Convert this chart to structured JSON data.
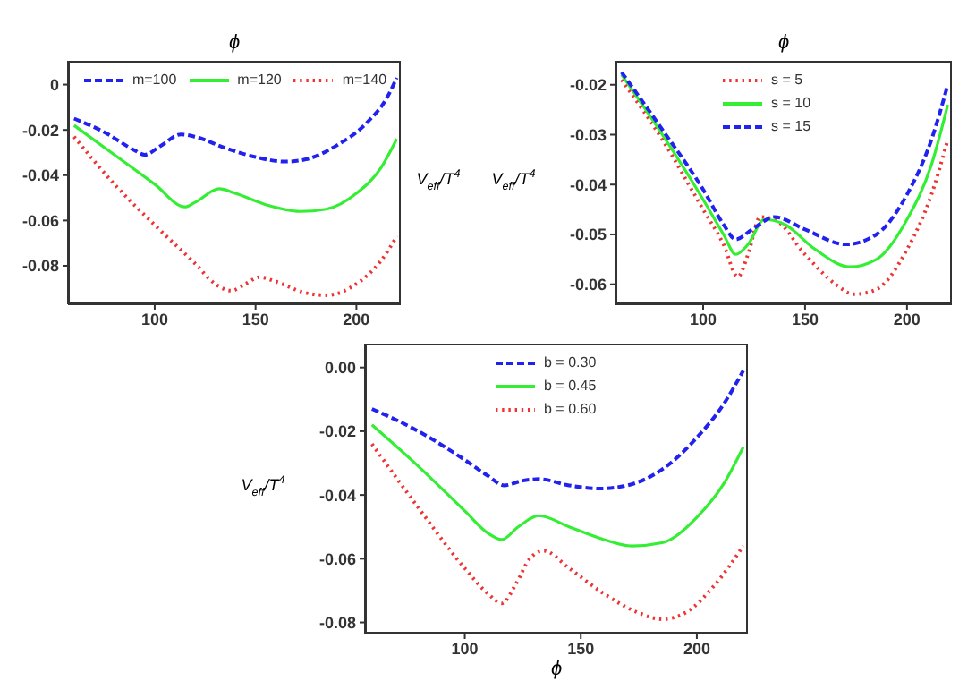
{
  "chart_data": [
    {
      "type": "line",
      "xlabel": "ϕ",
      "ylabel": "V$_{eff}$/T$^{4}$",
      "xlim": [
        57,
        222
      ],
      "ylim": [
        -0.097,
        0.0105
      ],
      "xticks": [
        100,
        150,
        200
      ],
      "yticks": [
        0,
        -0.02,
        -0.04,
        -0.06,
        -0.08
      ],
      "grid": false,
      "legend": "top",
      "marker": "none",
      "series": [
        {
          "name": "m=100",
          "color": "#2222ee",
          "line_style": "dashed",
          "x": [
            60,
            75,
            90,
            95,
            103,
            113,
            120,
            135,
            150,
            165,
            175,
            190,
            205,
            215,
            220
          ],
          "values": [
            -0.015,
            -0.021,
            -0.029,
            -0.031,
            -0.027,
            -0.022,
            -0.023,
            -0.028,
            -0.032,
            -0.034,
            -0.033,
            -0.027,
            -0.017,
            -0.006,
            0.003
          ]
        },
        {
          "name": "m=120",
          "color": "#33ee33",
          "line_style": "solid",
          "x": [
            60,
            80,
            100,
            115,
            120,
            132,
            140,
            155,
            172,
            185,
            200,
            212,
            220
          ],
          "values": [
            -0.018,
            -0.031,
            -0.044,
            -0.054,
            -0.052,
            -0.046,
            -0.048,
            -0.053,
            -0.056,
            -0.055,
            -0.048,
            -0.037,
            -0.024
          ]
        },
        {
          "name": "m=140",
          "color": "#ee3333",
          "line_style": "dotted",
          "x": [
            60,
            80,
            100,
            120,
            130,
            138,
            145,
            152,
            160,
            175,
            185,
            200,
            212,
            220
          ],
          "values": [
            -0.023,
            -0.044,
            -0.062,
            -0.079,
            -0.088,
            -0.091,
            -0.088,
            -0.085,
            -0.087,
            -0.092,
            -0.093,
            -0.088,
            -0.078,
            -0.067
          ]
        }
      ]
    },
    {
      "type": "line",
      "xlabel": "ϕ",
      "ylabel": "V$_{eff}$/T$^{4}$",
      "xlim": [
        57,
        222
      ],
      "ylim": [
        -0.064,
        -0.0152
      ],
      "xticks": [
        100,
        150,
        200
      ],
      "yticks": [
        -0.02,
        -0.03,
        -0.04,
        -0.05,
        -0.06
      ],
      "grid": false,
      "legend": "top",
      "marker": "none",
      "series": [
        {
          "name": "s = 5",
          "color": "#ee3333",
          "line_style": "dotted",
          "x": [
            60,
            80,
            100,
            110,
            117,
            122,
            128,
            135,
            150,
            165,
            174,
            185,
            200,
            212,
            220
          ],
          "values": [
            -0.019,
            -0.031,
            -0.045,
            -0.052,
            -0.0585,
            -0.054,
            -0.0465,
            -0.047,
            -0.054,
            -0.06,
            -0.062,
            -0.061,
            -0.053,
            -0.042,
            -0.031
          ]
        },
        {
          "name": "s = 10",
          "color": "#33ee33",
          "line_style": "solid",
          "x": [
            60,
            80,
            100,
            110,
            116,
            122,
            130,
            140,
            155,
            172,
            185,
            200,
            212,
            220
          ],
          "values": [
            -0.018,
            -0.03,
            -0.043,
            -0.05,
            -0.054,
            -0.052,
            -0.047,
            -0.048,
            -0.053,
            -0.0565,
            -0.055,
            -0.047,
            -0.036,
            -0.024
          ]
        },
        {
          "name": "s = 15",
          "color": "#2222ee",
          "line_style": "dashed",
          "x": [
            60,
            80,
            100,
            110,
            116,
            124,
            135,
            150,
            170,
            185,
            200,
            212,
            220
          ],
          "values": [
            -0.0175,
            -0.029,
            -0.041,
            -0.048,
            -0.051,
            -0.049,
            -0.0465,
            -0.049,
            -0.052,
            -0.05,
            -0.042,
            -0.031,
            -0.02
          ]
        }
      ]
    },
    {
      "type": "line",
      "xlabel": "ϕ",
      "ylabel": "V$_{eff}$/T$^{4}$",
      "xlim": [
        57,
        222
      ],
      "ylim": [
        -0.0835,
        0.0075
      ],
      "xticks": [
        100,
        150,
        200
      ],
      "yticks": [
        {
          "value": 0,
          "label": "0.00"
        },
        -0.02,
        -0.04,
        -0.06,
        -0.08
      ],
      "grid": false,
      "legend": "top",
      "marker": "none",
      "series": [
        {
          "name": "b = 0.30",
          "color": "#2222ee",
          "line_style": "dashed",
          "x": [
            60,
            80,
            100,
            110,
            117,
            125,
            132,
            145,
            158,
            170,
            185,
            200,
            212,
            220
          ],
          "values": [
            -0.013,
            -0.02,
            -0.029,
            -0.034,
            -0.037,
            -0.0355,
            -0.035,
            -0.037,
            -0.038,
            -0.037,
            -0.032,
            -0.022,
            -0.011,
            -0.001
          ]
        },
        {
          "name": "b = 0.45",
          "color": "#33ee33",
          "line_style": "solid",
          "x": [
            60,
            80,
            100,
            110,
            116,
            123,
            132,
            145,
            160,
            172,
            185,
            200,
            212,
            220
          ],
          "values": [
            -0.018,
            -0.031,
            -0.045,
            -0.052,
            -0.054,
            -0.05,
            -0.0465,
            -0.05,
            -0.054,
            -0.056,
            -0.055,
            -0.047,
            -0.036,
            -0.025
          ]
        },
        {
          "name": "b = 0.60",
          "color": "#ee3333",
          "line_style": "dotted",
          "x": [
            60,
            80,
            100,
            110,
            116,
            122,
            128,
            134,
            145,
            160,
            175,
            185,
            195,
            208,
            220
          ],
          "values": [
            -0.024,
            -0.044,
            -0.063,
            -0.071,
            -0.074,
            -0.068,
            -0.06,
            -0.0575,
            -0.063,
            -0.071,
            -0.077,
            -0.079,
            -0.077,
            -0.068,
            -0.056
          ]
        }
      ]
    }
  ]
}
